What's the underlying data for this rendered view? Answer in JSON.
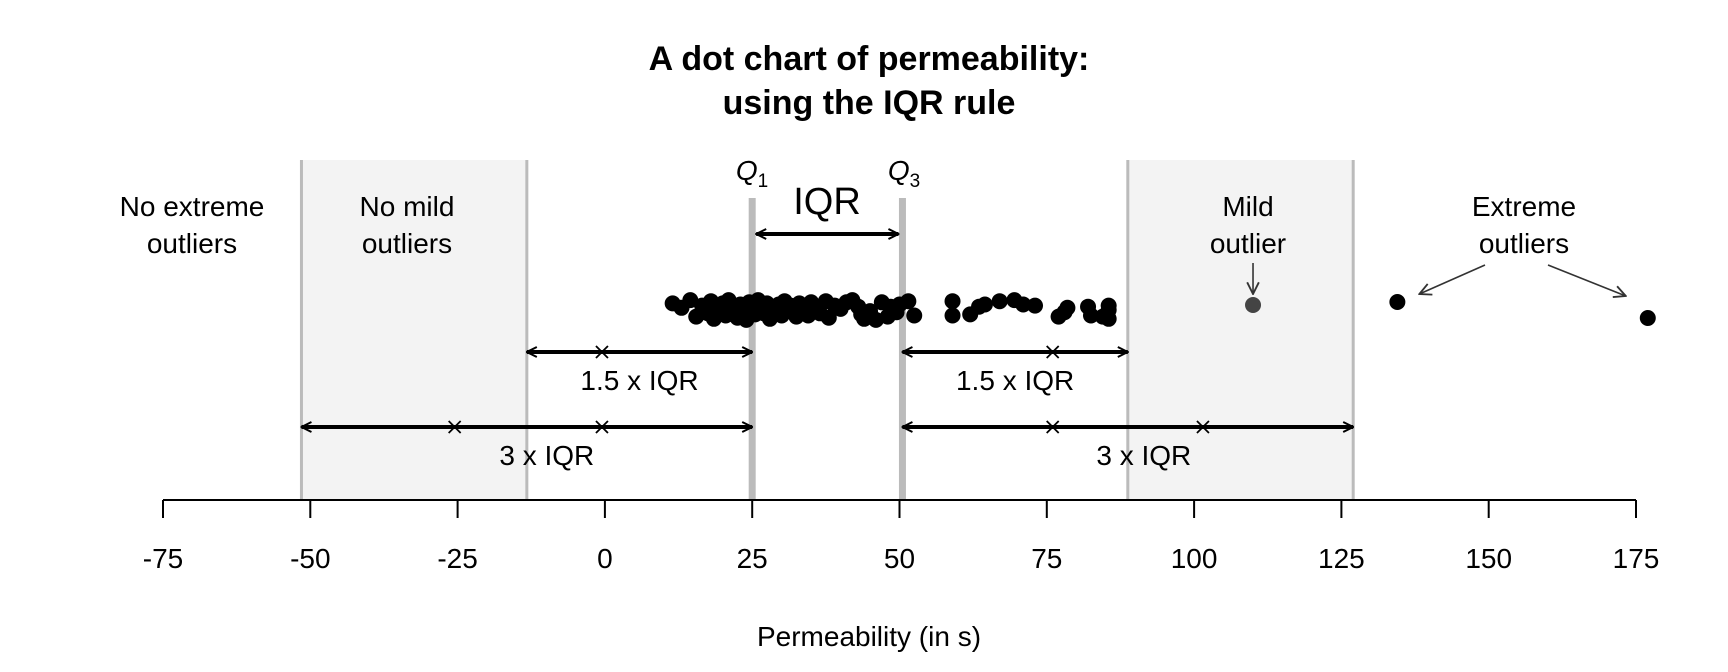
{
  "chart_data": {
    "type": "dot",
    "title": [
      "A dot chart of permeability:",
      "using the IQR rule"
    ],
    "xlabel": "Permeability (in s)",
    "ylabel": "",
    "xlim": [
      -75,
      175
    ],
    "x_ticks": [
      -75,
      -50,
      -25,
      0,
      25,
      50,
      75,
      100,
      125,
      150,
      175
    ],
    "x_tick_labels": [
      "-75",
      "-50",
      "-25",
      "0",
      "25",
      "50",
      "75",
      "100",
      "125",
      "150",
      "175"
    ],
    "grid": false,
    "q1": 25,
    "q3": 50.5,
    "iqr": 25.5,
    "mild_fences": [
      -13.25,
      88.75
    ],
    "extreme_fences": [
      -51.5,
      127
    ],
    "fence_crosses": {
      "mild_left": [
        -0.5
      ],
      "mild_right": [
        76
      ],
      "extreme_left": [
        -25.5,
        -0.5
      ],
      "extreme_right": [
        76,
        101.5
      ]
    },
    "points": [
      {
        "x": 11.5,
        "jitter": 0.6
      },
      {
        "x": 13,
        "jitter": 0.2
      },
      {
        "x": 14.5,
        "jitter": 0.9
      },
      {
        "x": 15.5,
        "jitter": -0.6
      },
      {
        "x": 16.5,
        "jitter": 0.4
      },
      {
        "x": 17.5,
        "jitter": -0.3
      },
      {
        "x": 18,
        "jitter": 0.8
      },
      {
        "x": 18.5,
        "jitter": -0.8
      },
      {
        "x": 19.5,
        "jitter": 0.1
      },
      {
        "x": 20,
        "jitter": 0.6
      },
      {
        "x": 20.5,
        "jitter": -0.5
      },
      {
        "x": 21,
        "jitter": 0.9
      },
      {
        "x": 21.5,
        "jitter": 0.3
      },
      {
        "x": 22,
        "jitter": -0.2
      },
      {
        "x": 22.5,
        "jitter": -0.7
      },
      {
        "x": 23,
        "jitter": 0.5
      },
      {
        "x": 23.5,
        "jitter": 0.0
      },
      {
        "x": 24,
        "jitter": -0.9
      },
      {
        "x": 24.5,
        "jitter": 0.7
      },
      {
        "x": 25,
        "jitter": 0.2
      },
      {
        "x": 25.5,
        "jitter": -0.4
      },
      {
        "x": 26,
        "jitter": 0.9
      },
      {
        "x": 26.5,
        "jitter": 0.3
      },
      {
        "x": 27,
        "jitter": -0.3
      },
      {
        "x": 27.5,
        "jitter": 0.6
      },
      {
        "x": 28,
        "jitter": -0.8
      },
      {
        "x": 28.5,
        "jitter": 0.1
      },
      {
        "x": 29.5,
        "jitter": 0.5
      },
      {
        "x": 30,
        "jitter": -0.5
      },
      {
        "x": 30.5,
        "jitter": 0.8
      },
      {
        "x": 31,
        "jitter": -0.1
      },
      {
        "x": 31.5,
        "jitter": 0.4
      },
      {
        "x": 32.5,
        "jitter": -0.6
      },
      {
        "x": 33,
        "jitter": 0.6
      },
      {
        "x": 34,
        "jitter": 0.0
      },
      {
        "x": 34.5,
        "jitter": -0.5
      },
      {
        "x": 35,
        "jitter": 0.7
      },
      {
        "x": 36,
        "jitter": 0.2
      },
      {
        "x": 36.5,
        "jitter": -0.3
      },
      {
        "x": 37.5,
        "jitter": 0.8
      },
      {
        "x": 38,
        "jitter": -0.7
      },
      {
        "x": 39,
        "jitter": 0.4
      },
      {
        "x": 40,
        "jitter": 0.1
      },
      {
        "x": 41,
        "jitter": 0.7
      },
      {
        "x": 42,
        "jitter": 0.9
      },
      {
        "x": 43,
        "jitter": 0.3
      },
      {
        "x": 43.5,
        "jitter": -0.4
      },
      {
        "x": 44,
        "jitter": -0.8
      },
      {
        "x": 45,
        "jitter": -0.1
      },
      {
        "x": 46,
        "jitter": -0.9
      },
      {
        "x": 47,
        "jitter": 0.7
      },
      {
        "x": 48,
        "jitter": -0.6
      },
      {
        "x": 48.5,
        "jitter": 0.3
      },
      {
        "x": 49.5,
        "jitter": -0.2
      },
      {
        "x": 50,
        "jitter": 0.5
      },
      {
        "x": 51.5,
        "jitter": 0.8
      },
      {
        "x": 52.5,
        "jitter": -0.5
      },
      {
        "x": 59,
        "jitter": 0.8
      },
      {
        "x": 59,
        "jitter": -0.5
      },
      {
        "x": 62,
        "jitter": -0.4
      },
      {
        "x": 63.5,
        "jitter": 0.3
      },
      {
        "x": 64.5,
        "jitter": 0.5
      },
      {
        "x": 67,
        "jitter": 0.8
      },
      {
        "x": 69.5,
        "jitter": 0.9
      },
      {
        "x": 71,
        "jitter": 0.5
      },
      {
        "x": 73,
        "jitter": 0.4
      },
      {
        "x": 77,
        "jitter": -0.6
      },
      {
        "x": 78,
        "jitter": -0.2
      },
      {
        "x": 78.5,
        "jitter": 0.2
      },
      {
        "x": 82,
        "jitter": 0.3
      },
      {
        "x": 82.5,
        "jitter": -0.5
      },
      {
        "x": 84.5,
        "jitter": -0.6
      },
      {
        "x": 85.5,
        "jitter": 0.0
      },
      {
        "x": 85.5,
        "jitter": -0.8
      },
      {
        "x": 85.5,
        "jitter": 0.4
      }
    ],
    "mild_outlier": [
      110
    ],
    "extreme_outliers": [
      134.5,
      177
    ],
    "annotations": {
      "q1_label": "Q",
      "q1_sub": "1",
      "q3_label": "Q",
      "q3_sub": "3",
      "iqr_label": "IQR",
      "mild_iqr_label": "1.5 x IQR",
      "extreme_iqr_label": "3 x IQR",
      "no_extreme": [
        "No extreme",
        "outliers"
      ],
      "no_mild": [
        "No mild",
        "outliers"
      ],
      "mild_outlier": [
        "Mild",
        "outlier"
      ],
      "extreme_outliers": [
        "Extreme",
        "outliers"
      ]
    },
    "colors": {
      "zone_fill": "#f3f3f3",
      "fence_line": "#bbbbbb",
      "quartile_line": "#bbbbbb",
      "point": "#000000",
      "mild_point": "#444444",
      "arrow": "#000000",
      "annotation_arrow": "#333333"
    }
  }
}
